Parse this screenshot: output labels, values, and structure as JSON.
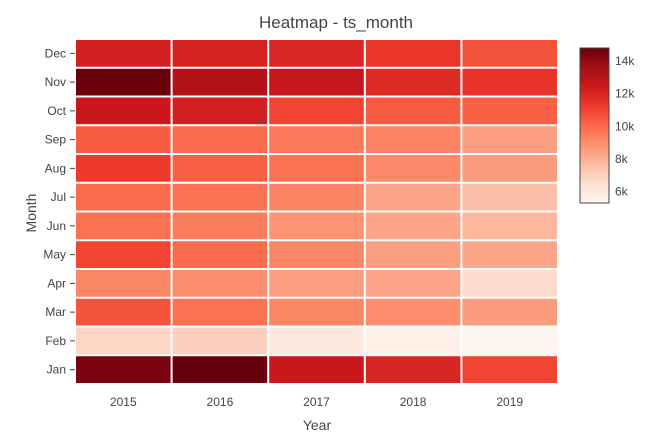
{
  "chart_data": {
    "type": "heatmap",
    "title": "Heatmap - ts_month",
    "xlabel": "Year",
    "ylabel": "Month",
    "x": [
      "2015",
      "2016",
      "2017",
      "2018",
      "2019"
    ],
    "y": [
      "Jan",
      "Feb",
      "Mar",
      "Apr",
      "May",
      "Jun",
      "Jul",
      "Aug",
      "Sep",
      "Oct",
      "Nov",
      "Dec"
    ],
    "z": [
      [
        14500,
        14800,
        12500,
        12000,
        11000
      ],
      [
        6800,
        7000,
        6000,
        5600,
        5300
      ],
      [
        10600,
        9800,
        9200,
        9000,
        8600
      ],
      [
        9200,
        9000,
        8500,
        8300,
        6600
      ],
      [
        11000,
        10000,
        9200,
        8500,
        8300
      ],
      [
        9800,
        9500,
        8800,
        8300,
        7800
      ],
      [
        10000,
        9800,
        9300,
        8300,
        7500
      ],
      [
        11300,
        10300,
        9800,
        9100,
        8600
      ],
      [
        10400,
        10000,
        9600,
        9300,
        8500
      ],
      [
        12500,
        12200,
        11000,
        10400,
        10300
      ],
      [
        14700,
        13200,
        12600,
        11800,
        11500
      ],
      [
        12200,
        12100,
        11900,
        11400,
        10600
      ]
    ],
    "colorbar": {
      "ticks": [
        "6k",
        "8k",
        "10k",
        "12k",
        "14k"
      ],
      "tick_values": [
        6000,
        8000,
        10000,
        12000,
        14000
      ],
      "zmin": 5300,
      "zmax": 14800
    },
    "colorscale": "Reds",
    "grid": false,
    "legend": "right"
  }
}
